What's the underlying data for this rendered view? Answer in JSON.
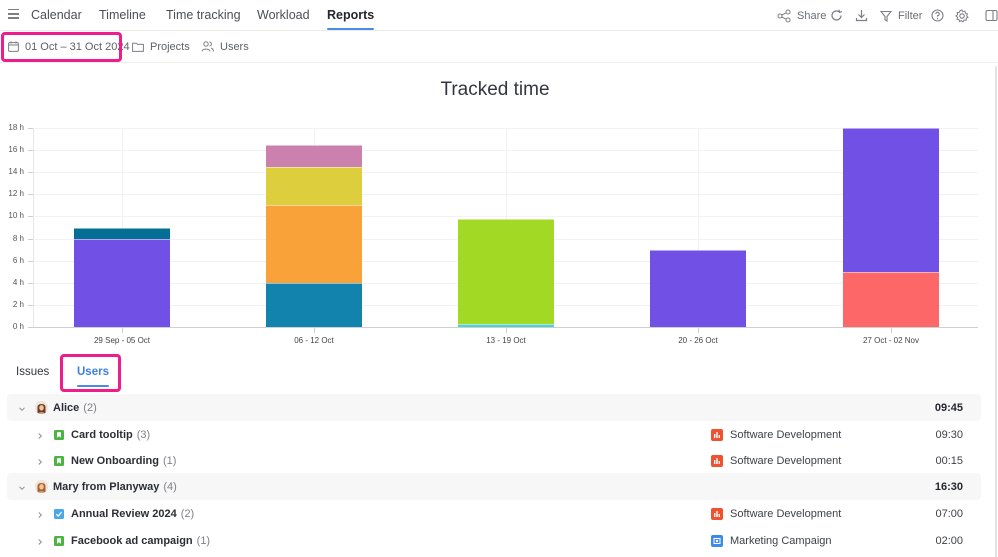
{
  "nav": {
    "tabs": [
      {
        "label": "Calendar",
        "active": false
      },
      {
        "label": "Timeline",
        "active": false
      },
      {
        "label": "Time tracking",
        "active": false
      },
      {
        "label": "Workload",
        "active": false
      },
      {
        "label": "Reports",
        "active": true
      }
    ],
    "toolbar": {
      "share_label": "Share",
      "filter_label": "Filter",
      "icons": [
        "share-icon",
        "refresh-icon",
        "download-icon",
        "filter-icon",
        "help-icon",
        "settings-icon",
        "panel-toggle-icon"
      ]
    }
  },
  "filters": {
    "date_range": "01 Oct – 31 Oct 2024",
    "projects_label": "Projects",
    "users_label": "Users"
  },
  "chart_data": {
    "type": "bar",
    "stacked": true,
    "title": "Tracked time",
    "xlabel": "",
    "ylabel": "",
    "ylim": [
      0,
      18
    ],
    "yticks": [
      "0 h",
      "2 h",
      "4 h",
      "6 h",
      "8 h",
      "10 h",
      "12 h",
      "14 h",
      "16 h",
      "18 h"
    ],
    "grid": true,
    "legend": "none",
    "categories": [
      "29 Sep - 05 Oct",
      "06 - 12 Oct",
      "13 - 19 Oct",
      "20 - 26 Oct",
      "27 Oct - 02 Nov"
    ],
    "bars": [
      {
        "category": "29 Sep - 05 Oct",
        "segments": [
          {
            "value": 8,
            "color": "#7150e6"
          },
          {
            "value": 1,
            "color": "#046f94"
          }
        ]
      },
      {
        "category": "06 - 12 Oct",
        "segments": [
          {
            "value": 4,
            "color": "#1283ad"
          },
          {
            "value": 7,
            "color": "#f9a23a"
          },
          {
            "value": 3.5,
            "color": "#dcce3c"
          },
          {
            "value": 2,
            "color": "#cc80ad"
          }
        ]
      },
      {
        "category": "13 - 19 Oct",
        "segments": [
          {
            "value": 0.25,
            "color": "#4fd1d4"
          },
          {
            "value": 9.5,
            "color": "#a2d924"
          }
        ]
      },
      {
        "category": "20 - 26 Oct",
        "segments": [
          {
            "value": 7,
            "color": "#7150e6"
          }
        ]
      },
      {
        "category": "27 Oct - 02 Nov",
        "segments": [
          {
            "value": 5,
            "color": "#fe6768"
          },
          {
            "value": 13,
            "color": "#7150e6"
          }
        ]
      }
    ]
  },
  "report_tabs": [
    {
      "label": "Issues",
      "active": false
    },
    {
      "label": "Users",
      "active": true
    }
  ],
  "rows": [
    {
      "type": "group",
      "name": "Alice",
      "count": "(2)",
      "time": "09:45",
      "avatar": "avatar-alice"
    },
    {
      "type": "item",
      "name": "Card tooltip",
      "count": "(3)",
      "issue_icon": "story-icon",
      "project": "Software Development",
      "project_icon": "software-project-icon",
      "time": "09:30"
    },
    {
      "type": "item",
      "name": "New Onboarding",
      "count": "(1)",
      "issue_icon": "story-icon",
      "project": "Software Development",
      "project_icon": "software-project-icon",
      "time": "00:15"
    },
    {
      "type": "group",
      "name": "Mary from Planyway",
      "count": "(4)",
      "time": "16:30",
      "avatar": "avatar-mary"
    },
    {
      "type": "item",
      "name": "Annual Review 2024",
      "count": "(2)",
      "issue_icon": "task-icon",
      "project": "Software Development",
      "project_icon": "software-project-icon",
      "time": "07:00"
    },
    {
      "type": "item",
      "name": "Facebook ad campaign",
      "count": "(1)",
      "issue_icon": "story-icon",
      "project": "Marketing Campaign",
      "project_icon": "marketing-project-icon",
      "time": "02:00"
    }
  ],
  "colors": {
    "accent": "#4a8ae8",
    "highlight": "#ee1c8c",
    "story": "#4bb543",
    "task": "#4ba8e8",
    "software_project": "#f0522f",
    "marketing_project": "#3d8be8"
  }
}
